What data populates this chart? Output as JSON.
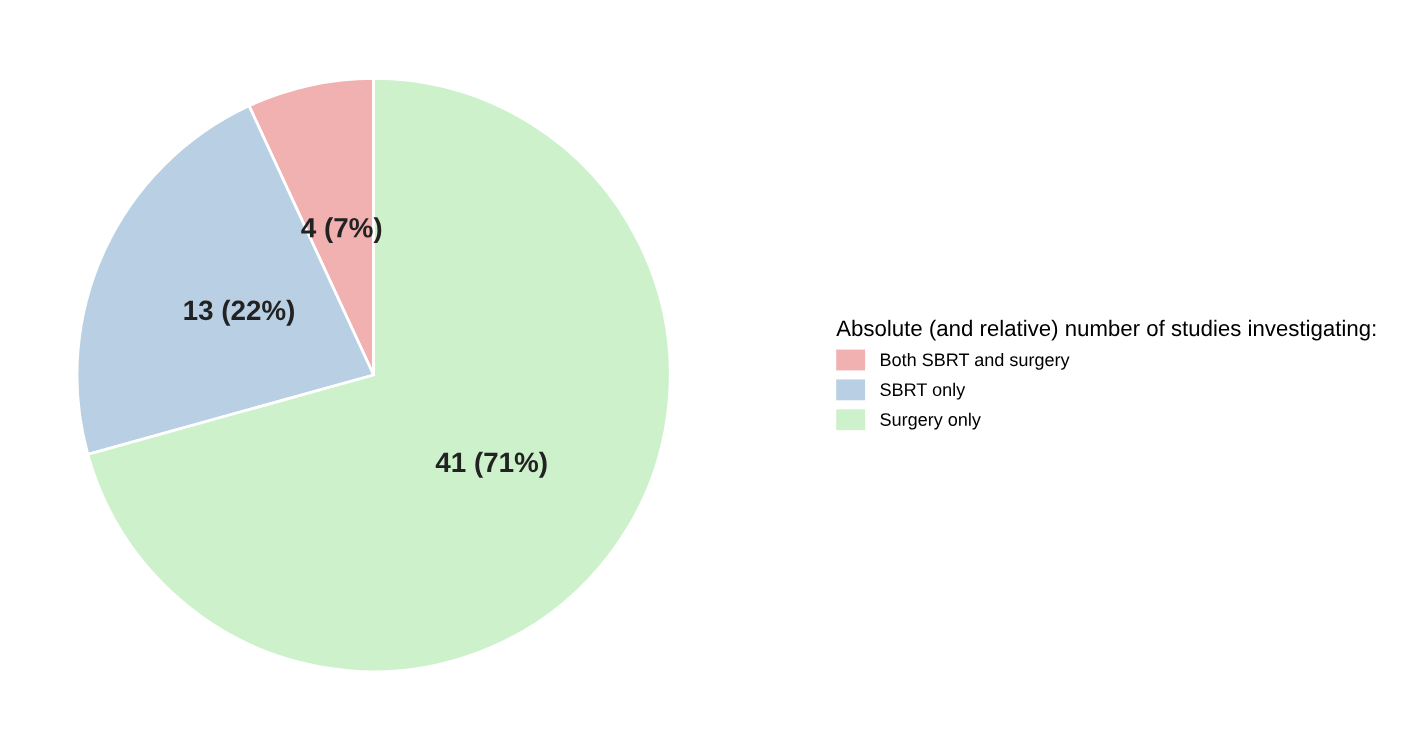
{
  "chart_data": {
    "type": "pie",
    "categories": [
      "Both SBRT and surgery",
      "SBRT only",
      "Surgery only"
    ],
    "values": [
      4,
      13,
      41
    ],
    "value_labels": [
      "4 (7%)",
      "13 (22%)",
      "41 (71%)"
    ],
    "colors": [
      "#f0b1b0",
      "#b9d0e4",
      "#cdf1ca"
    ],
    "legend_title": "Absolute (and relative) number of studies investigating:",
    "legend": "right"
  }
}
